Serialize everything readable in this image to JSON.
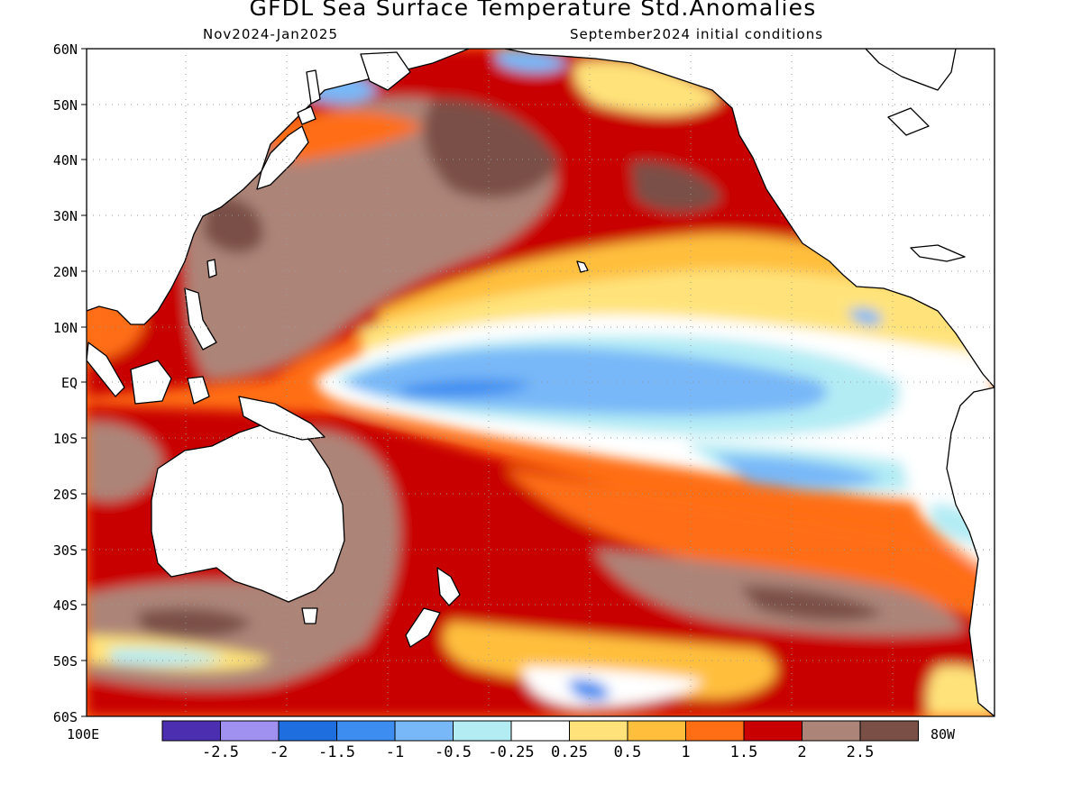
{
  "title": "GFDL Sea Surface Temperature Std.Anomalies",
  "subtitle_left": "Nov2024-Jan2025",
  "subtitle_right": "September2024 initial conditions",
  "lat_labels": [
    "60N",
    "50N",
    "40N",
    "30N",
    "20N",
    "10N",
    "EQ",
    "10S",
    "20S",
    "30S",
    "40S",
    "50S",
    "60S"
  ],
  "lon_left": "100E",
  "lon_right": "80W",
  "colorbar": {
    "colors": [
      "#4b2fb0",
      "#a090f0",
      "#1f6ee0",
      "#3d8cf0",
      "#78b8f8",
      "#b4ecf4",
      "#ffffff",
      "#ffe37a",
      "#ffbf3c",
      "#ff6e14",
      "#c80000",
      "#ad8478",
      "#7a5046"
    ],
    "labels": [
      "-2.5",
      "-2",
      "-1.5",
      "-1",
      "-0.5",
      "-0.25",
      "0.25",
      "0.5",
      "1",
      "1.5",
      "2",
      "2.5"
    ]
  },
  "map_colors": {
    "land": "#ffffff",
    "coast": "#000000",
    "grid": "#9a9a9a"
  }
}
